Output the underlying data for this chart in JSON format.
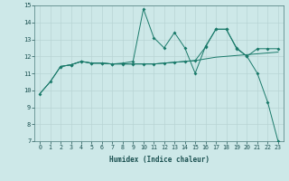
{
  "title": "",
  "xlabel": "Humidex (Indice chaleur)",
  "background_color": "#cde8e8",
  "grid_color": "#b8d4d4",
  "line_color": "#1a7a6a",
  "xlim": [
    -0.5,
    23.5
  ],
  "ylim": [
    7,
    15
  ],
  "xticks": [
    0,
    1,
    2,
    3,
    4,
    5,
    6,
    7,
    8,
    9,
    10,
    11,
    12,
    13,
    14,
    15,
    16,
    17,
    18,
    19,
    20,
    21,
    22,
    23
  ],
  "yticks": [
    7,
    8,
    9,
    10,
    11,
    12,
    13,
    14,
    15
  ],
  "series1_x": [
    0,
    1,
    2,
    3,
    4,
    5,
    6,
    7,
    8,
    9,
    10,
    11,
    12,
    13,
    14,
    15,
    16,
    17,
    18,
    19,
    20,
    21,
    22,
    23
  ],
  "series1_y": [
    9.8,
    10.5,
    11.4,
    11.5,
    11.7,
    11.6,
    11.6,
    11.55,
    11.55,
    11.55,
    11.55,
    11.55,
    11.6,
    11.65,
    11.7,
    11.75,
    11.85,
    11.95,
    12.0,
    12.05,
    12.1,
    12.15,
    12.2,
    12.25
  ],
  "series2_x": [
    0,
    1,
    2,
    3,
    4,
    5,
    6,
    7,
    8,
    9,
    10,
    11,
    12,
    13,
    14,
    15,
    16,
    17,
    18,
    19,
    20,
    21,
    22,
    23
  ],
  "series2_y": [
    9.8,
    10.5,
    11.4,
    11.5,
    11.7,
    11.6,
    11.6,
    11.55,
    11.6,
    11.7,
    14.8,
    13.1,
    12.5,
    13.4,
    12.5,
    11.0,
    12.6,
    13.6,
    13.6,
    12.5,
    12.0,
    11.0,
    9.3,
    7.0
  ],
  "series3_x": [
    2,
    3,
    4,
    5,
    6,
    7,
    8,
    9,
    10,
    11,
    12,
    13,
    14,
    15,
    16,
    17,
    18,
    19,
    20,
    21,
    22,
    23
  ],
  "series3_y": [
    11.4,
    11.5,
    11.7,
    11.6,
    11.6,
    11.55,
    11.55,
    11.55,
    11.55,
    11.55,
    11.6,
    11.65,
    11.7,
    11.75,
    12.55,
    13.6,
    13.6,
    12.45,
    12.0,
    12.45,
    12.45,
    12.45
  ]
}
